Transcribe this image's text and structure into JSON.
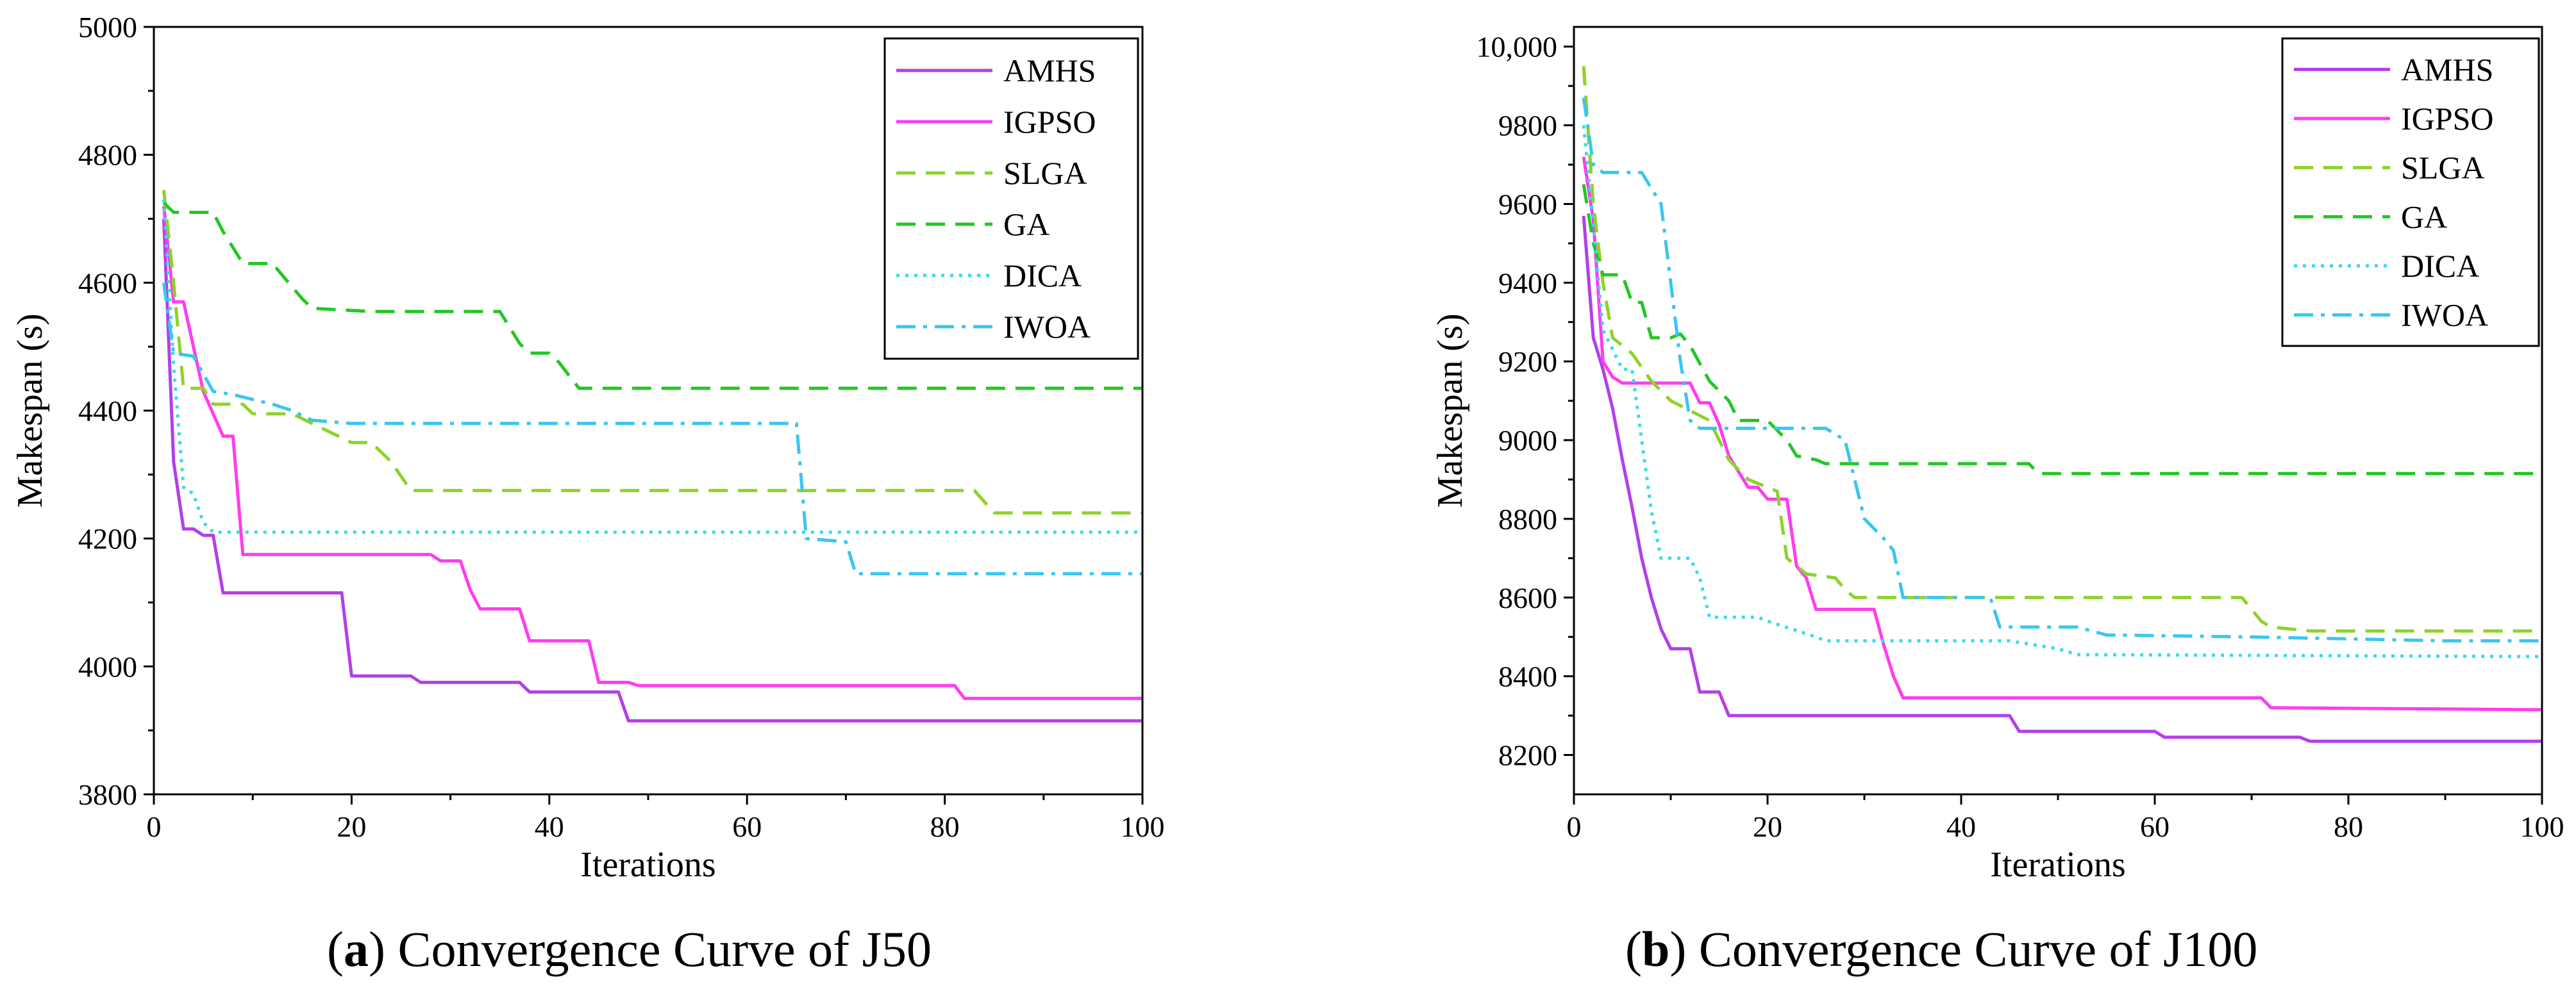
{
  "captions": [
    {
      "letter": "a",
      "open": "(",
      "close": ")",
      "text": " Convergence Curve of J50"
    },
    {
      "letter": "b",
      "open": "(",
      "close": ")",
      "text": " Convergence Curve of J100"
    }
  ],
  "chart_data": [
    {
      "type": "line",
      "title": "",
      "xlabel": "Iterations",
      "ylabel": "Makespan (s)",
      "xlim": [
        0,
        100
      ],
      "ylim": [
        3800,
        5000
      ],
      "xticks": [
        0,
        20,
        40,
        60,
        80,
        100
      ],
      "yticks": [
        3800,
        4000,
        4200,
        4400,
        4600,
        4800,
        5000
      ],
      "ytick_labels": [
        "3800",
        "4000",
        "4200",
        "4400",
        "4600",
        "4800",
        "5000"
      ],
      "legend_position": "top-right",
      "series": [
        {
          "name": "AMHS",
          "color": "#b23fe8",
          "dash": "solid",
          "points": [
            [
              1,
              4700
            ],
            [
              2,
              4320
            ],
            [
              3,
              4215
            ],
            [
              4,
              4215
            ],
            [
              5,
              4205
            ],
            [
              6,
              4205
            ],
            [
              7,
              4115
            ],
            [
              19,
              4115
            ],
            [
              20,
              3985
            ],
            [
              26,
              3985
            ],
            [
              27,
              3975
            ],
            [
              37,
              3975
            ],
            [
              38,
              3960
            ],
            [
              47,
              3960
            ],
            [
              48,
              3915
            ],
            [
              100,
              3915
            ]
          ]
        },
        {
          "name": "IGPSO",
          "color": "#ff3cf0",
          "dash": "solid",
          "points": [
            [
              1,
              4720
            ],
            [
              2,
              4570
            ],
            [
              3,
              4570
            ],
            [
              4,
              4500
            ],
            [
              5,
              4430
            ],
            [
              7,
              4360
            ],
            [
              8,
              4360
            ],
            [
              9,
              4175
            ],
            [
              28,
              4175
            ],
            [
              29,
              4165
            ],
            [
              31,
              4165
            ],
            [
              32,
              4120
            ],
            [
              33,
              4090
            ],
            [
              37,
              4090
            ],
            [
              38,
              4040
            ],
            [
              44,
              4040
            ],
            [
              45,
              3975
            ],
            [
              48,
              3975
            ],
            [
              49,
              3970
            ],
            [
              81,
              3970
            ],
            [
              82,
              3950
            ],
            [
              100,
              3950
            ]
          ]
        },
        {
          "name": "SLGA",
          "color": "#8fd12a",
          "dash": "dashed",
          "points": [
            [
              1,
              4745
            ],
            [
              2,
              4600
            ],
            [
              3,
              4435
            ],
            [
              5,
              4435
            ],
            [
              6,
              4410
            ],
            [
              9,
              4410
            ],
            [
              10,
              4395
            ],
            [
              14,
              4395
            ],
            [
              16,
              4380
            ],
            [
              20,
              4350
            ],
            [
              22,
              4350
            ],
            [
              24,
              4320
            ],
            [
              26,
              4275
            ],
            [
              83,
              4275
            ],
            [
              85,
              4240
            ],
            [
              100,
              4240
            ]
          ]
        },
        {
          "name": "GA",
          "color": "#22c722",
          "dash": "dashed",
          "points": [
            [
              1,
              4725
            ],
            [
              2,
              4710
            ],
            [
              6,
              4710
            ],
            [
              7,
              4680
            ],
            [
              8,
              4655
            ],
            [
              9,
              4630
            ],
            [
              12,
              4630
            ],
            [
              15,
              4575
            ],
            [
              16,
              4560
            ],
            [
              22,
              4555
            ],
            [
              35,
              4555
            ],
            [
              37,
              4505
            ],
            [
              38,
              4490
            ],
            [
              40,
              4490
            ],
            [
              41,
              4475
            ],
            [
              43,
              4435
            ],
            [
              100,
              4435
            ]
          ]
        },
        {
          "name": "DICA",
          "color": "#35dcef",
          "dash": "dotted",
          "points": [
            [
              1,
              4730
            ],
            [
              2,
              4470
            ],
            [
              3,
              4280
            ],
            [
              4,
              4270
            ],
            [
              5,
              4225
            ],
            [
              6,
              4210
            ],
            [
              100,
              4210
            ]
          ]
        },
        {
          "name": "IWOA",
          "color": "#38c6f0",
          "dash": "dashdot",
          "points": [
            [
              1,
              4600
            ],
            [
              2,
              4490
            ],
            [
              4,
              4485
            ],
            [
              6,
              4430
            ],
            [
              8,
              4425
            ],
            [
              12,
              4410
            ],
            [
              14,
              4400
            ],
            [
              16,
              4385
            ],
            [
              20,
              4380
            ],
            [
              65,
              4380
            ],
            [
              66,
              4200
            ],
            [
              70,
              4195
            ],
            [
              71,
              4145
            ],
            [
              100,
              4145
            ]
          ]
        }
      ]
    },
    {
      "type": "line",
      "title": "",
      "xlabel": "Iterations",
      "ylabel": "Makespan (s)",
      "xlim": [
        0,
        100
      ],
      "ylim": [
        8100,
        10050
      ],
      "xticks": [
        0,
        20,
        40,
        60,
        80,
        100
      ],
      "yticks": [
        8200,
        8400,
        8600,
        8800,
        9000,
        9200,
        9400,
        9600,
        9800,
        10000
      ],
      "ytick_labels": [
        "8200",
        "8400",
        "8600",
        "8800",
        "9000",
        "9200",
        "9400",
        "9600",
        "9800",
        "10,000"
      ],
      "legend_position": "top-right",
      "series": [
        {
          "name": "AMHS",
          "color": "#b23fe8",
          "dash": "solid",
          "points": [
            [
              1,
              9570
            ],
            [
              2,
              9260
            ],
            [
              3,
              9180
            ],
            [
              4,
              9080
            ],
            [
              5,
              8950
            ],
            [
              6,
              8830
            ],
            [
              7,
              8700
            ],
            [
              8,
              8600
            ],
            [
              9,
              8520
            ],
            [
              10,
              8470
            ],
            [
              12,
              8470
            ],
            [
              13,
              8360
            ],
            [
              15,
              8360
            ],
            [
              16,
              8300
            ],
            [
              45,
              8300
            ],
            [
              46,
              8260
            ],
            [
              60,
              8260
            ],
            [
              61,
              8245
            ],
            [
              75,
              8245
            ],
            [
              76,
              8235
            ],
            [
              100,
              8235
            ]
          ]
        },
        {
          "name": "IGPSO",
          "color": "#ff3cf0",
          "dash": "solid",
          "points": [
            [
              1,
              9720
            ],
            [
              2,
              9560
            ],
            [
              3,
              9200
            ],
            [
              4,
              9160
            ],
            [
              5,
              9145
            ],
            [
              12,
              9145
            ],
            [
              13,
              9095
            ],
            [
              14,
              9095
            ],
            [
              15,
              9040
            ],
            [
              16,
              8960
            ],
            [
              17,
              8920
            ],
            [
              18,
              8880
            ],
            [
              19,
              8880
            ],
            [
              20,
              8850
            ],
            [
              22,
              8850
            ],
            [
              23,
              8680
            ],
            [
              24,
              8650
            ],
            [
              25,
              8570
            ],
            [
              31,
              8570
            ],
            [
              32,
              8480
            ],
            [
              33,
              8400
            ],
            [
              34,
              8345
            ],
            [
              71,
              8345
            ],
            [
              72,
              8320
            ],
            [
              100,
              8315
            ]
          ]
        },
        {
          "name": "SLGA",
          "color": "#8fd12a",
          "dash": "dashed",
          "points": [
            [
              1,
              9950
            ],
            [
              2,
              9600
            ],
            [
              3,
              9400
            ],
            [
              4,
              9260
            ],
            [
              6,
              9220
            ],
            [
              8,
              9150
            ],
            [
              10,
              9100
            ],
            [
              14,
              9050
            ],
            [
              16,
              8950
            ],
            [
              18,
              8900
            ],
            [
              21,
              8870
            ],
            [
              22,
              8700
            ],
            [
              24,
              8660
            ],
            [
              27,
              8650
            ],
            [
              28,
              8620
            ],
            [
              29,
              8600
            ],
            [
              69,
              8600
            ],
            [
              71,
              8540
            ],
            [
              72,
              8525
            ],
            [
              76,
              8515
            ],
            [
              100,
              8515
            ]
          ]
        },
        {
          "name": "GA",
          "color": "#22c722",
          "dash": "dashed",
          "points": [
            [
              1,
              9650
            ],
            [
              2,
              9500
            ],
            [
              3,
              9420
            ],
            [
              5,
              9420
            ],
            [
              6,
              9350
            ],
            [
              7,
              9350
            ],
            [
              8,
              9260
            ],
            [
              10,
              9260
            ],
            [
              11,
              9270
            ],
            [
              12,
              9240
            ],
            [
              14,
              9150
            ],
            [
              16,
              9100
            ],
            [
              17,
              9050
            ],
            [
              20,
              9050
            ],
            [
              22,
              9000
            ],
            [
              23,
              8960
            ],
            [
              25,
              8950
            ],
            [
              26,
              8940
            ],
            [
              47,
              8940
            ],
            [
              48,
              8915
            ],
            [
              100,
              8915
            ]
          ]
        },
        {
          "name": "DICA",
          "color": "#35dcef",
          "dash": "dotted",
          "points": [
            [
              1,
              9800
            ],
            [
              2,
              9550
            ],
            [
              3,
              9280
            ],
            [
              5,
              9180
            ],
            [
              6,
              9180
            ],
            [
              7,
              9000
            ],
            [
              8,
              8820
            ],
            [
              9,
              8700
            ],
            [
              12,
              8700
            ],
            [
              13,
              8650
            ],
            [
              14,
              8550
            ],
            [
              19,
              8550
            ],
            [
              20,
              8540
            ],
            [
              25,
              8500
            ],
            [
              26,
              8490
            ],
            [
              45,
              8490
            ],
            [
              50,
              8470
            ],
            [
              52,
              8455
            ],
            [
              100,
              8450
            ]
          ]
        },
        {
          "name": "IWOA",
          "color": "#38c6f0",
          "dash": "dashdot",
          "points": [
            [
              1,
              9870
            ],
            [
              2,
              9700
            ],
            [
              3,
              9680
            ],
            [
              7,
              9680
            ],
            [
              9,
              9600
            ],
            [
              10,
              9400
            ],
            [
              11,
              9200
            ],
            [
              12,
              9050
            ],
            [
              13,
              9030
            ],
            [
              26,
              9030
            ],
            [
              28,
              9000
            ],
            [
              30,
              8800
            ],
            [
              32,
              8750
            ],
            [
              33,
              8720
            ],
            [
              34,
              8600
            ],
            [
              43,
              8600
            ],
            [
              44,
              8525
            ],
            [
              52,
              8525
            ],
            [
              55,
              8505
            ],
            [
              70,
              8500
            ],
            [
              90,
              8490
            ],
            [
              100,
              8490
            ]
          ]
        }
      ]
    }
  ]
}
